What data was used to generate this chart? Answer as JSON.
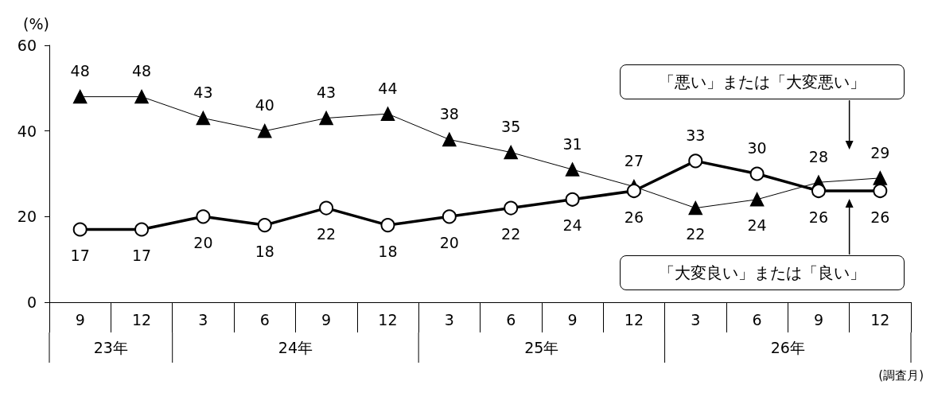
{
  "chart_data": {
    "type": "line",
    "ylabel": "(%)",
    "xlabel": "(調査月)",
    "categories": [
      "9",
      "12",
      "3",
      "6",
      "9",
      "12",
      "3",
      "6",
      "9",
      "12",
      "3",
      "6",
      "9",
      "12"
    ],
    "annotations": [
      "23年",
      "24年",
      "25年",
      "26年"
    ],
    "ylim": [
      0,
      60
    ],
    "yticks": [
      0,
      20,
      40,
      60
    ],
    "grid": false,
    "legend": false,
    "data_labels": true,
    "line_style": "solid",
    "series": [
      {
        "name": "「悪い」または「大変悪い」",
        "color": "#000000",
        "marker": "triangle",
        "values": [
          48,
          48,
          43,
          40,
          43,
          44,
          38,
          35,
          31,
          27,
          22,
          24,
          28,
          29
        ]
      },
      {
        "name": "「大変良い」または「良い」",
        "color": "#000000",
        "marker": "circle",
        "values": [
          17,
          17,
          20,
          18,
          22,
          18,
          20,
          22,
          24,
          26,
          33,
          30,
          26,
          26
        ]
      }
    ]
  }
}
